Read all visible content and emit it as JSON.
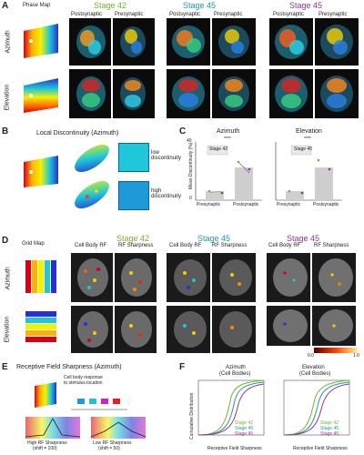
{
  "panels": {
    "A": {
      "letter": "A",
      "phase_map": "Phase Map",
      "stage42": "Stage 42",
      "stage45a": "Stage 45",
      "stage45b": "Stage 45",
      "post": "Postsynaptic",
      "pre": "Presynaptic",
      "azimuth": "Azimuth",
      "elevation": "Elevation"
    },
    "B": {
      "letter": "B",
      "title": "Local Discontinuity (Azimuth)",
      "low": "low discontinuity",
      "high": "high discontinuity"
    },
    "C": {
      "letter": "C",
      "azimuth": "Azimuth",
      "elevation": "Elevation",
      "ylabel": "Mean Discontinuity (%)",
      "legend": [
        "Stage 42",
        "Stage 45"
      ],
      "sig": "****",
      "xlabels": [
        "Presynaptic",
        "Postsynaptic"
      ],
      "yticks": [
        "40",
        "30",
        "20",
        "10",
        "0"
      ]
    },
    "D": {
      "letter": "D",
      "grid_map": "Grid Map",
      "stage42": "Stage 42",
      "stage45a": "Stage 45",
      "stage45b": "Stage 45",
      "cell_rf": "Cell Body RF",
      "rf_sharp": "RF Sharpness",
      "azimuth": "Azimuth",
      "elevation": "Elevation",
      "scale_low": "0.0",
      "scale_high": "1.0"
    },
    "E": {
      "letter": "E",
      "title": "Receptive Field Sharpness (Azimuth)",
      "legend_title": "Cell body response",
      "legend_sub": "to stimulus location",
      "high": "High RF Sharpness",
      "high_sub": "(shift = 100)",
      "low": "Low RF Sharpness",
      "low_sub": "(shift = 50)"
    },
    "F": {
      "letter": "F",
      "azimuth": "Azimuth",
      "azimuth_sub": "(Cell Bodies)",
      "elevation": "Elevation",
      "elevation_sub": "(Cell Bodies)",
      "ylabel": "Cumulative Distribution",
      "xlabel": "Receptive Field Sharpness",
      "legend": [
        "Stage 42",
        "Stage 45",
        "Stage 45"
      ]
    }
  },
  "colors": {
    "stage42": "#78b02a",
    "stage45a": "#1f9aa0",
    "stage45b": "#8b3a8e"
  }
}
